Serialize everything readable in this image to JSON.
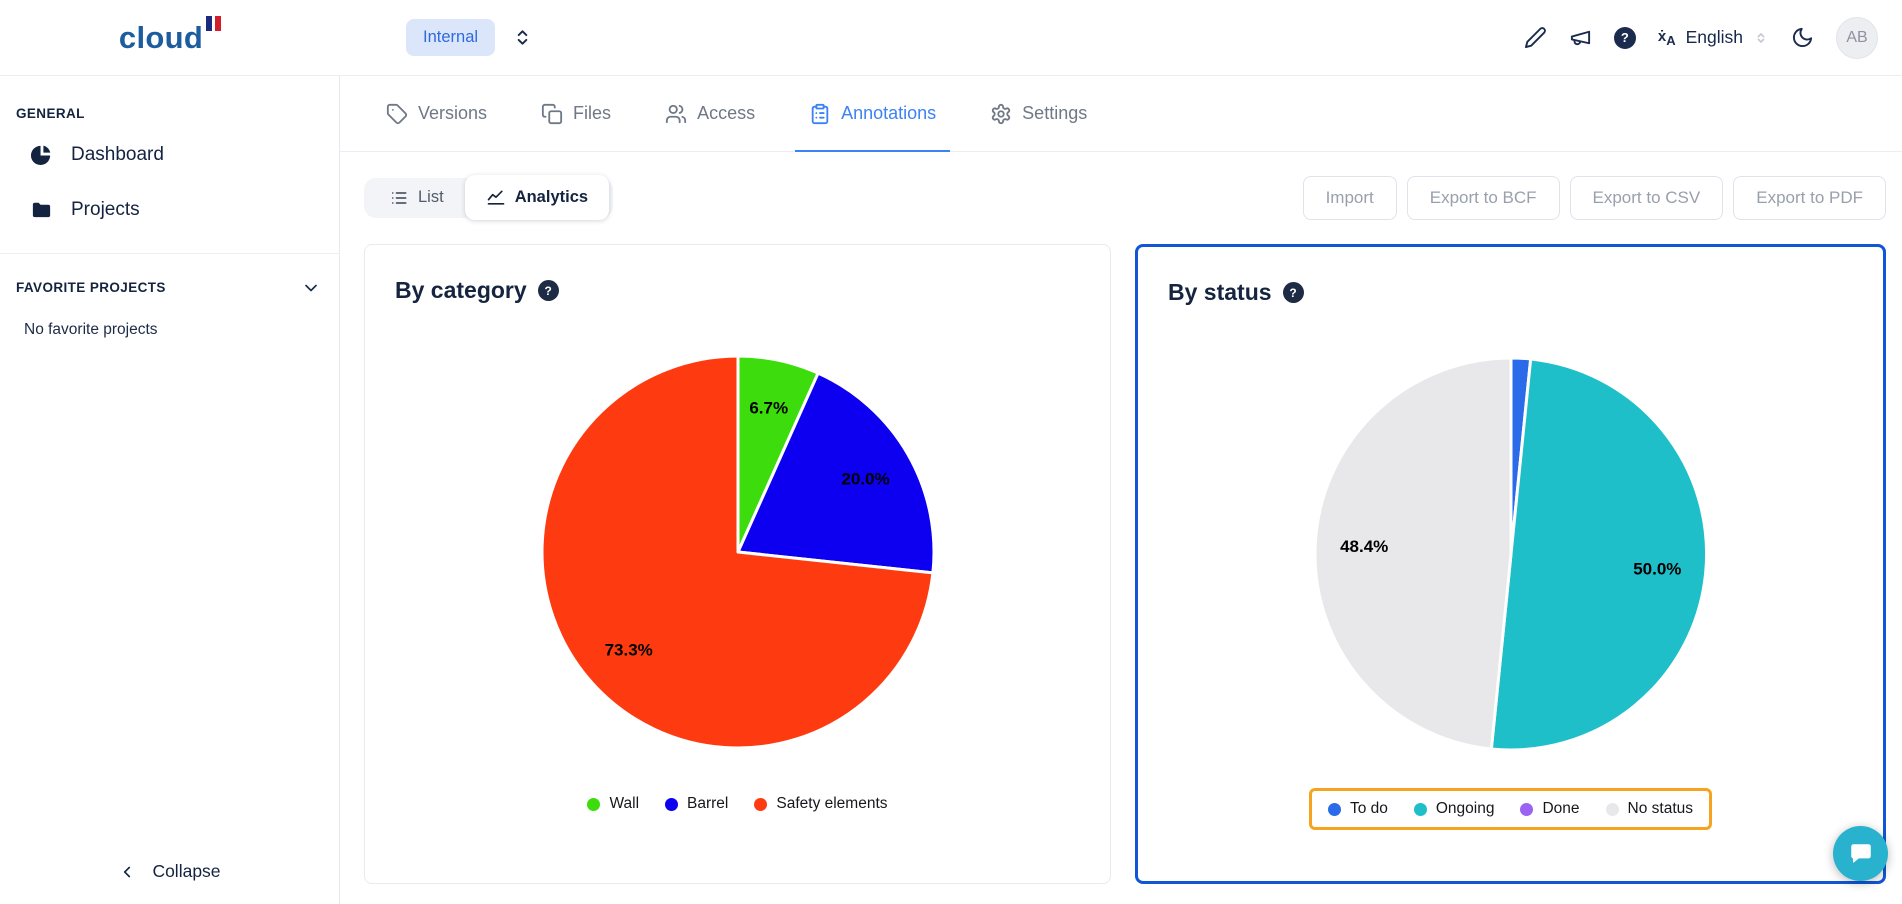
{
  "glyphs": {
    "help": "?"
  },
  "header": {
    "logo_text": "cloud",
    "workspace_label": "Internal",
    "language_label": "English",
    "avatar_initials": "AB"
  },
  "sidebar": {
    "general_label": "GENERAL",
    "items": [
      {
        "label": "Dashboard",
        "icon": "pie-chart"
      },
      {
        "label": "Projects",
        "icon": "folder"
      }
    ],
    "favorites_label": "FAVORITE PROJECTS",
    "favorites_empty": "No favorite projects",
    "collapse_label": "Collapse"
  },
  "tabs": [
    {
      "label": "Versions",
      "icon": "tag",
      "active": false
    },
    {
      "label": "Files",
      "icon": "copy",
      "active": false
    },
    {
      "label": "Access",
      "icon": "users",
      "active": false
    },
    {
      "label": "Annotations",
      "icon": "clipboard",
      "active": true
    },
    {
      "label": "Settings",
      "icon": "gear",
      "active": false
    }
  ],
  "view_toggle": {
    "options": [
      {
        "label": "List",
        "icon": "list",
        "active": false
      },
      {
        "label": "Analytics",
        "icon": "trend",
        "active": true
      }
    ]
  },
  "actions": [
    {
      "label": "Import"
    },
    {
      "label": "Export to BCF"
    },
    {
      "label": "Export to CSV"
    },
    {
      "label": "Export to PDF"
    }
  ],
  "chart_data": [
    {
      "type": "pie",
      "title": "By category",
      "labels": [
        "Wall",
        "Barrel",
        "Safety elements"
      ],
      "values": [
        6.7,
        20.0,
        73.3
      ],
      "colors": [
        "#3ddc0d",
        "#0d00f0",
        "#fe3b10"
      ],
      "value_label_format": "percent_1dp",
      "label_min_pct": 3,
      "legend_position": "bottom",
      "start_angle": 0,
      "card_highlighted": false,
      "legend_highlighted": false
    },
    {
      "type": "pie",
      "title": "By status",
      "labels": [
        "To do",
        "Ongoing",
        "Done",
        "No status"
      ],
      "values": [
        1.6,
        50.0,
        0.0,
        48.4
      ],
      "colors": [
        "#2b6ae9",
        "#1fbfca",
        "#9b63f4",
        "#e8e8ea"
      ],
      "value_label_format": "percent_1dp",
      "label_min_pct": 3,
      "legend_position": "bottom",
      "start_angle": 0,
      "card_highlighted": true,
      "legend_highlighted": true
    }
  ],
  "highlight_colors": {
    "card_border": "#1256d8",
    "legend_border": "#f6a41f"
  }
}
